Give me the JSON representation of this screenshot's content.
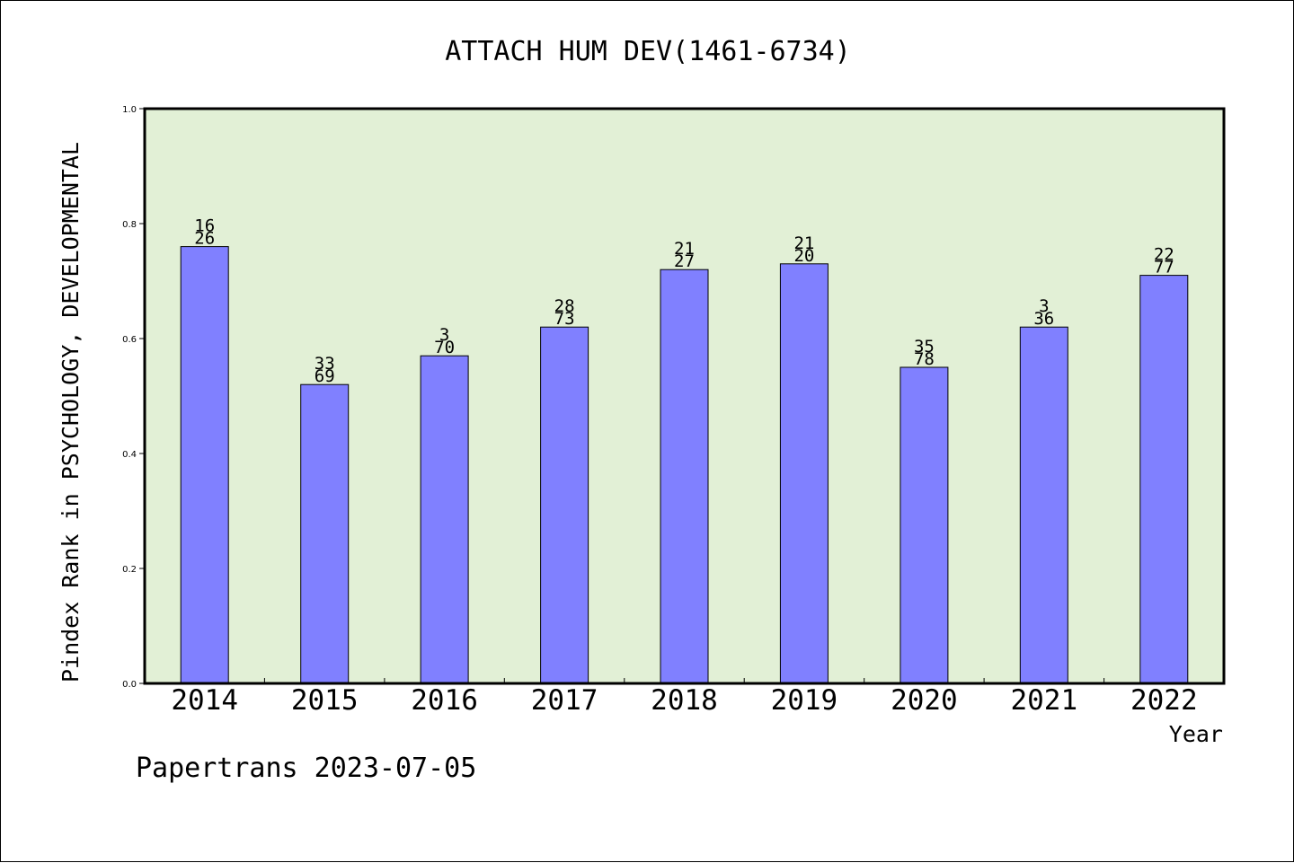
{
  "chart_data": {
    "type": "bar",
    "title": "ATTACH HUM DEV(1461-6734)",
    "xlabel": "Year",
    "ylabel": "Pindex Rank in PSYCHOLOGY, DEVELOPMENTAL",
    "footer": "Papertrans 2023-07-05",
    "categories": [
      "2014",
      "2015",
      "2016",
      "2017",
      "2018",
      "2019",
      "2020",
      "2021",
      "2022"
    ],
    "values": [
      0.76,
      0.52,
      0.57,
      0.62,
      0.72,
      0.73,
      0.55,
      0.62,
      0.71
    ],
    "rank_labels": [
      {
        "rank": "16",
        "total": "26"
      },
      {
        "rank": "33",
        "total": "69"
      },
      {
        "rank": "3",
        "total": "70"
      },
      {
        "rank": "28",
        "total": "73"
      },
      {
        "rank": "21",
        "total": "27"
      },
      {
        "rank": "21",
        "total": "20"
      },
      {
        "rank": "35",
        "total": "78"
      },
      {
        "rank": "3",
        "total": "36"
      },
      {
        "rank": "22",
        "total": "77"
      }
    ],
    "ylim": [
      0.0,
      1.0
    ],
    "yticks": [
      "0.0",
      "0.2",
      "0.4",
      "0.6",
      "0.8",
      "1.0"
    ],
    "grid": false,
    "colors": {
      "plot_background": "#e2f0d6",
      "bar_fill": "#8080ff",
      "bar_stroke": "#000000",
      "axis": "#000000",
      "text": "#000000"
    }
  }
}
